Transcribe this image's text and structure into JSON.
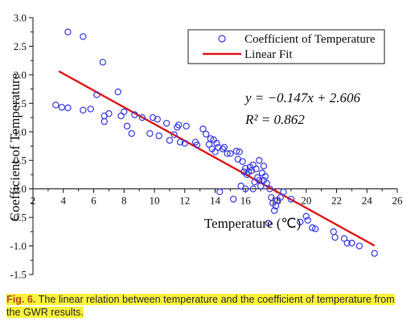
{
  "chart_data": {
    "type": "scatter",
    "xlabel": "Temperature (℃)",
    "ylabel": "Coefficient of Temperature",
    "xlim": [
      2,
      26
    ],
    "ylim": [
      -1.5,
      3.0
    ],
    "x_ticks": [
      "2",
      "4",
      "6",
      "8",
      "10",
      "12",
      "14",
      "16",
      "18",
      "20",
      "22",
      "24",
      "26"
    ],
    "y_ticks": [
      "3.0",
      "2.5",
      "2.0",
      "1.5",
      "1.0",
      "0.5",
      "0.0",
      "-0.5",
      "-1.0",
      "-1.5"
    ],
    "legend": {
      "position": "top-right",
      "points_label": "Coefficient of Temperature",
      "fit_label": "Linear Fit"
    },
    "equation": "y = −0.147x + 2.606",
    "r_squared": "R² = 0.862",
    "point_color": "#3a3ae6",
    "fit_color": "#e01818",
    "fit": {
      "slope": -0.147,
      "intercept": 2.606,
      "x_start": 3.7,
      "x_end": 24.5
    },
    "points": [
      [
        3.5,
        1.47
      ],
      [
        3.9,
        1.43
      ],
      [
        4.3,
        1.42
      ],
      [
        4.3,
        2.75
      ],
      [
        5.3,
        2.67
      ],
      [
        5.3,
        1.38
      ],
      [
        5.8,
        1.4
      ],
      [
        6.2,
        1.65
      ],
      [
        6.6,
        2.22
      ],
      [
        6.7,
        1.18
      ],
      [
        6.7,
        1.28
      ],
      [
        7.0,
        1.32
      ],
      [
        7.6,
        1.7
      ],
      [
        7.8,
        1.28
      ],
      [
        8.0,
        1.35
      ],
      [
        8.2,
        1.1
      ],
      [
        8.5,
        0.97
      ],
      [
        8.7,
        1.3
      ],
      [
        9.2,
        1.25
      ],
      [
        9.7,
        0.97
      ],
      [
        9.9,
        1.25
      ],
      [
        10.2,
        1.22
      ],
      [
        10.3,
        0.93
      ],
      [
        10.8,
        1.15
      ],
      [
        11.0,
        0.85
      ],
      [
        11.3,
        0.95
      ],
      [
        11.5,
        1.08
      ],
      [
        11.6,
        1.12
      ],
      [
        11.7,
        0.82
      ],
      [
        12.0,
        0.8
      ],
      [
        12.1,
        1.1
      ],
      [
        12.7,
        0.82
      ],
      [
        12.8,
        0.77
      ],
      [
        13.2,
        1.05
      ],
      [
        13.4,
        0.96
      ],
      [
        13.6,
        0.78
      ],
      [
        13.7,
        0.88
      ],
      [
        13.8,
        0.7
      ],
      [
        13.9,
        0.86
      ],
      [
        14.0,
        0.65
      ],
      [
        14.1,
        0.8
      ],
      [
        14.2,
        0.73
      ],
      [
        14.3,
        -0.05
      ],
      [
        14.5,
        0.7
      ],
      [
        14.6,
        0.73
      ],
      [
        14.8,
        0.62
      ],
      [
        15.0,
        0.62
      ],
      [
        15.2,
        -0.18
      ],
      [
        15.4,
        0.66
      ],
      [
        15.5,
        0.52
      ],
      [
        15.6,
        0.65
      ],
      [
        15.7,
        0.05
      ],
      [
        15.8,
        0.48
      ],
      [
        15.9,
        0.3
      ],
      [
        16.0,
        0.36
      ],
      [
        16.0,
        0.0
      ],
      [
        16.1,
        0.25
      ],
      [
        16.2,
        0.3
      ],
      [
        16.3,
        0.38
      ],
      [
        16.4,
        0.32
      ],
      [
        16.5,
        0.0
      ],
      [
        16.5,
        0.42
      ],
      [
        16.6,
        0.12
      ],
      [
        16.7,
        0.35
      ],
      [
        16.8,
        0.2
      ],
      [
        16.9,
        0.15
      ],
      [
        16.9,
        0.5
      ],
      [
        17.0,
        0.05
      ],
      [
        17.1,
        0.28
      ],
      [
        17.2,
        0.15
      ],
      [
        17.2,
        0.4
      ],
      [
        17.3,
        0.22
      ],
      [
        17.4,
        0.1
      ],
      [
        17.5,
        -0.6
      ],
      [
        17.6,
        0.0
      ],
      [
        17.7,
        -0.15
      ],
      [
        17.8,
        -0.25
      ],
      [
        17.9,
        -0.38
      ],
      [
        18.0,
        -0.3
      ],
      [
        18.1,
        -0.2
      ],
      [
        18.3,
        -0.15
      ],
      [
        18.5,
        -0.05
      ],
      [
        19.0,
        -0.18
      ],
      [
        19.6,
        -0.58
      ],
      [
        20.0,
        -0.48
      ],
      [
        20.1,
        -0.55
      ],
      [
        20.4,
        -0.68
      ],
      [
        20.6,
        -0.7
      ],
      [
        21.8,
        -0.75
      ],
      [
        21.9,
        -0.85
      ],
      [
        22.5,
        -0.87
      ],
      [
        22.7,
        -0.95
      ],
      [
        23.0,
        -0.95
      ],
      [
        23.5,
        -1.0
      ],
      [
        24.5,
        -1.13
      ]
    ]
  },
  "caption": {
    "figure_label": "Fig. 6.",
    "text": " The linear relation between temperature and the coefficient of temperature from the GWR results."
  }
}
